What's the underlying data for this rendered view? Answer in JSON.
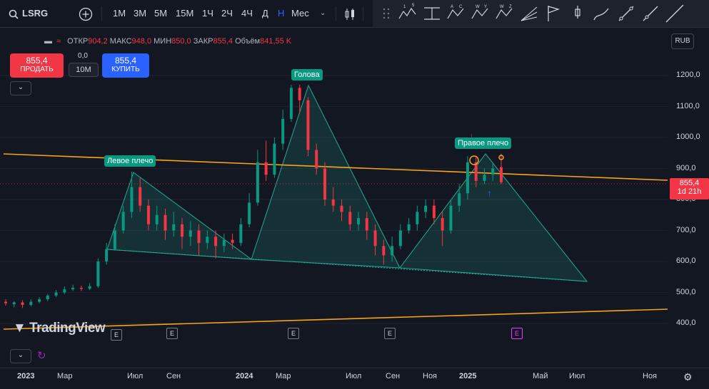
{
  "toolbar": {
    "symbol": "LSRG",
    "intervals": [
      "1М",
      "3М",
      "5М",
      "15М",
      "1Ч",
      "2Ч",
      "4Ч",
      "Д",
      "Н",
      "Мес"
    ],
    "active_interval": "Н"
  },
  "ohlc": {
    "open_label": "ОТКР",
    "open": "904,2",
    "high_label": "МАКС",
    "high": "948,0",
    "low_label": "МИН",
    "low": "850,0",
    "close_label": "ЗАКР",
    "close": "855,4",
    "volume_label": "Объём",
    "volume": "841,55 K"
  },
  "trade": {
    "sell_price": "855,4",
    "sell_label": "ПРОДАТЬ",
    "spread": "0,0",
    "qty": "10M",
    "buy_price": "855,4",
    "buy_label": "КУПИТЬ"
  },
  "currency": "RUB",
  "price_tag": {
    "price": "855,4",
    "countdown": "1d 21h"
  },
  "watermark": "TradingView",
  "annotations": {
    "left_shoulder": "Левое плечо",
    "head": "Голова",
    "right_shoulder": "Правое плечо"
  },
  "colors": {
    "up": "#089981",
    "down": "#f23645",
    "trendline": "#f7a21b",
    "pattern": "#22ab94",
    "background": "#131722"
  },
  "chart_data": {
    "type": "candlestick",
    "x_ticks": [
      "2023",
      "Мар",
      "Июл",
      "Сен",
      "2024",
      "Мар",
      "Июл",
      "Сен",
      "Ноя",
      "2025",
      "Май",
      "Июл",
      "Ноя"
    ],
    "y_ticks": [
      "1200,0",
      "1100,0",
      "1000,0",
      "900,0",
      "800,0",
      "700,0",
      "600,0",
      "500,0",
      "400,0"
    ],
    "ylim": [
      380,
      1260
    ],
    "series_approx": [
      {
        "t": 0,
        "o": 470,
        "c": 465,
        "h": 478,
        "l": 458
      },
      {
        "t": 2,
        "o": 462,
        "c": 468,
        "h": 472,
        "l": 452
      },
      {
        "t": 4,
        "o": 468,
        "c": 460,
        "h": 475,
        "l": 450
      },
      {
        "t": 6,
        "o": 460,
        "c": 470,
        "h": 478,
        "l": 455
      },
      {
        "t": 8,
        "o": 470,
        "c": 478,
        "h": 485,
        "l": 465
      },
      {
        "t": 10,
        "o": 478,
        "c": 490,
        "h": 495,
        "l": 472
      },
      {
        "t": 12,
        "o": 490,
        "c": 500,
        "h": 508,
        "l": 485
      },
      {
        "t": 14,
        "o": 500,
        "c": 510,
        "h": 520,
        "l": 495
      },
      {
        "t": 16,
        "o": 510,
        "c": 515,
        "h": 525,
        "l": 505
      },
      {
        "t": 18,
        "o": 515,
        "c": 512,
        "h": 522,
        "l": 505
      },
      {
        "t": 20,
        "o": 512,
        "c": 520,
        "h": 530,
        "l": 508
      },
      {
        "t": 22,
        "o": 520,
        "c": 600,
        "h": 610,
        "l": 515
      },
      {
        "t": 24,
        "o": 600,
        "c": 640,
        "h": 660,
        "l": 590
      },
      {
        "t": 26,
        "o": 640,
        "c": 700,
        "h": 720,
        "l": 635
      },
      {
        "t": 28,
        "o": 700,
        "c": 760,
        "h": 780,
        "l": 690
      },
      {
        "t": 30,
        "o": 760,
        "c": 840,
        "h": 890,
        "l": 740
      },
      {
        "t": 32,
        "o": 840,
        "c": 780,
        "h": 870,
        "l": 760
      },
      {
        "t": 34,
        "o": 780,
        "c": 720,
        "h": 800,
        "l": 700
      },
      {
        "t": 36,
        "o": 720,
        "c": 750,
        "h": 780,
        "l": 700
      },
      {
        "t": 38,
        "o": 750,
        "c": 700,
        "h": 770,
        "l": 670
      },
      {
        "t": 40,
        "o": 700,
        "c": 720,
        "h": 760,
        "l": 680
      },
      {
        "t": 42,
        "o": 720,
        "c": 680,
        "h": 740,
        "l": 640
      },
      {
        "t": 44,
        "o": 680,
        "c": 700,
        "h": 730,
        "l": 650
      },
      {
        "t": 46,
        "o": 700,
        "c": 660,
        "h": 720,
        "l": 620
      },
      {
        "t": 48,
        "o": 660,
        "c": 680,
        "h": 700,
        "l": 640
      },
      {
        "t": 50,
        "o": 680,
        "c": 650,
        "h": 700,
        "l": 610
      },
      {
        "t": 52,
        "o": 650,
        "c": 670,
        "h": 690,
        "l": 630
      },
      {
        "t": 54,
        "o": 670,
        "c": 660,
        "h": 690,
        "l": 640
      },
      {
        "t": 56,
        "o": 660,
        "c": 720,
        "h": 740,
        "l": 650
      },
      {
        "t": 58,
        "o": 720,
        "c": 790,
        "h": 820,
        "l": 710
      },
      {
        "t": 60,
        "o": 790,
        "c": 920,
        "h": 960,
        "l": 780
      },
      {
        "t": 62,
        "o": 920,
        "c": 880,
        "h": 990,
        "l": 860
      },
      {
        "t": 64,
        "o": 880,
        "c": 980,
        "h": 1000,
        "l": 870
      },
      {
        "t": 66,
        "o": 980,
        "c": 1060,
        "h": 1090,
        "l": 960
      },
      {
        "t": 68,
        "o": 1060,
        "c": 1160,
        "h": 1170,
        "l": 1050
      },
      {
        "t": 70,
        "o": 1160,
        "c": 1120,
        "h": 1170,
        "l": 1080
      },
      {
        "t": 72,
        "o": 1120,
        "c": 960,
        "h": 1130,
        "l": 940
      },
      {
        "t": 74,
        "o": 960,
        "c": 900,
        "h": 980,
        "l": 880
      },
      {
        "t": 76,
        "o": 900,
        "c": 800,
        "h": 920,
        "l": 780
      },
      {
        "t": 78,
        "o": 800,
        "c": 780,
        "h": 840,
        "l": 760
      },
      {
        "t": 80,
        "o": 780,
        "c": 760,
        "h": 800,
        "l": 730
      },
      {
        "t": 82,
        "o": 760,
        "c": 720,
        "h": 780,
        "l": 700
      },
      {
        "t": 84,
        "o": 720,
        "c": 740,
        "h": 760,
        "l": 700
      },
      {
        "t": 86,
        "o": 740,
        "c": 700,
        "h": 760,
        "l": 670
      },
      {
        "t": 88,
        "o": 700,
        "c": 650,
        "h": 720,
        "l": 620
      },
      {
        "t": 90,
        "o": 650,
        "c": 620,
        "h": 670,
        "l": 590
      },
      {
        "t": 92,
        "o": 620,
        "c": 650,
        "h": 680,
        "l": 600
      },
      {
        "t": 94,
        "o": 650,
        "c": 700,
        "h": 720,
        "l": 640
      },
      {
        "t": 96,
        "o": 700,
        "c": 720,
        "h": 740,
        "l": 690
      },
      {
        "t": 98,
        "o": 720,
        "c": 760,
        "h": 780,
        "l": 700
      },
      {
        "t": 100,
        "o": 760,
        "c": 780,
        "h": 800,
        "l": 740
      },
      {
        "t": 102,
        "o": 780,
        "c": 740,
        "h": 800,
        "l": 720
      },
      {
        "t": 104,
        "o": 740,
        "c": 700,
        "h": 760,
        "l": 650
      },
      {
        "t": 106,
        "o": 700,
        "c": 780,
        "h": 800,
        "l": 690
      },
      {
        "t": 108,
        "o": 780,
        "c": 820,
        "h": 850,
        "l": 760
      },
      {
        "t": 110,
        "o": 820,
        "c": 920,
        "h": 940,
        "l": 800
      },
      {
        "t": 112,
        "o": 920,
        "c": 860,
        "h": 940,
        "l": 840
      },
      {
        "t": 114,
        "o": 860,
        "c": 880,
        "h": 900,
        "l": 850
      },
      {
        "t": 116,
        "o": 880,
        "c": 900,
        "h": 920,
        "l": 860
      },
      {
        "t": 118,
        "o": 904.2,
        "c": 855.4,
        "h": 948.0,
        "l": 850.0
      }
    ]
  }
}
